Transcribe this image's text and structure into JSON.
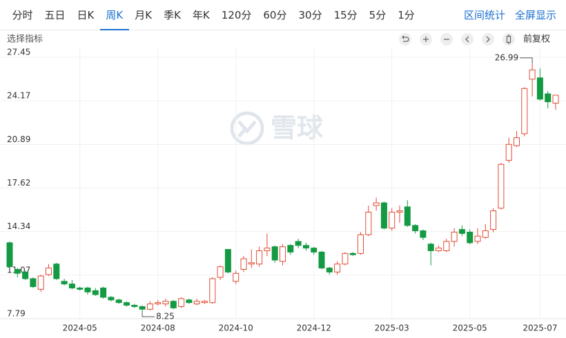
{
  "toolbar": {
    "periods": [
      "分时",
      "五日",
      "日K",
      "周K",
      "月K",
      "季K",
      "年K",
      "120分",
      "60分",
      "30分",
      "15分",
      "5分",
      "1分"
    ],
    "active": 3,
    "actions": [
      "区间统计",
      "全屏显示"
    ]
  },
  "sub_toolbar": {
    "indicator": "选择指标",
    "adjust": "前复权"
  },
  "chart_data": {
    "type": "candlestick",
    "watermark": "雪球",
    "categories": [
      null,
      null,
      null,
      null,
      null,
      null,
      null,
      null,
      null,
      "2024-05",
      null,
      null,
      null,
      null,
      null,
      null,
      null,
      null,
      null,
      "2024-08",
      null,
      null,
      null,
      null,
      null,
      null,
      null,
      null,
      null,
      "2024-10",
      null,
      null,
      null,
      null,
      null,
      null,
      null,
      null,
      null,
      "2024-12",
      null,
      null,
      null,
      null,
      null,
      null,
      null,
      null,
      null,
      "2025-03",
      null,
      null,
      null,
      null,
      null,
      null,
      null,
      null,
      null,
      "2025-05",
      null,
      null,
      null,
      null,
      null,
      null,
      null,
      null,
      "2025-07",
      null,
      null
    ],
    "open": [
      13.5,
      11.5,
      11.3,
      10.8,
      10.0,
      11.1,
      11.9,
      10.6,
      10.4,
      10.1,
      10.1,
      9.9,
      10.1,
      9.4,
      9.2,
      9.0,
      8.8,
      8.7,
      8.5,
      8.9,
      8.9,
      9.1,
      8.7,
      9.2,
      8.9,
      9.0,
      9.0,
      10.9,
      13.0,
      10.6,
      11.5,
      11.9,
      11.9,
      12.9,
      13.2,
      12.1,
      13.3,
      13.6,
      13.3,
      13.1,
      12.8,
      11.6,
      11.3,
      11.9,
      12.7,
      12.7,
      14.1,
      16.3,
      16.5,
      14.6,
      15.8,
      16.2,
      14.8,
      14.4,
      13.4,
      12.9,
      12.9,
      13.6,
      14.5,
      14.3,
      13.6,
      13.9,
      14.5,
      16.1,
      19.7,
      20.8,
      21.7,
      25.8,
      25.9,
      24.7,
      24.0
    ],
    "high": [
      13.6,
      11.6,
      11.4,
      10.9,
      11.1,
      11.9,
      12.0,
      10.8,
      10.7,
      10.2,
      10.2,
      10.1,
      10.2,
      9.5,
      9.3,
      9.1,
      8.9,
      8.8,
      9.1,
      9.2,
      9.3,
      9.2,
      9.4,
      9.3,
      9.3,
      9.2,
      10.9,
      11.8,
      13.0,
      11.4,
      12.5,
      13.0,
      13.2,
      14.2,
      13.3,
      13.4,
      13.4,
      13.8,
      13.5,
      13.2,
      12.9,
      11.7,
      12.1,
      12.8,
      12.8,
      14.3,
      16.3,
      16.9,
      16.6,
      16.1,
      16.3,
      16.7,
      14.9,
      14.5,
      13.5,
      13.3,
      13.8,
      14.6,
      14.8,
      14.5,
      14.6,
      14.9,
      16.1,
      19.5,
      21.4,
      21.9,
      25.2,
      26.99,
      26.6,
      24.9,
      24.6
    ],
    "low": [
      11.6,
      10.9,
      10.7,
      10.1,
      9.8,
      11.0,
      10.7,
      10.3,
      10.0,
      9.9,
      9.6,
      9.5,
      9.3,
      9.1,
      8.9,
      8.7,
      8.6,
      8.25,
      8.4,
      8.8,
      8.7,
      8.5,
      8.6,
      8.9,
      8.8,
      8.9,
      8.9,
      10.7,
      11.2,
      10.4,
      11.3,
      11.6,
      11.7,
      12.5,
      12.0,
      11.8,
      12.6,
      13.1,
      12.9,
      12.6,
      11.5,
      11.1,
      11.1,
      11.8,
      12.5,
      12.6,
      14.0,
      15.9,
      14.5,
      14.4,
      15.0,
      14.7,
      14.2,
      13.7,
      11.8,
      12.8,
      12.8,
      13.2,
      14.0,
      13.4,
      13.4,
      13.8,
      14.3,
      16.0,
      19.5,
      20.7,
      21.5,
      24.5,
      24.2,
      23.6,
      23.5
    ],
    "close": [
      11.7,
      11.2,
      10.8,
      10.2,
      11.0,
      11.6,
      10.8,
      10.4,
      10.1,
      10.0,
      9.8,
      9.6,
      9.4,
      9.2,
      9.0,
      8.8,
      8.7,
      8.5,
      8.9,
      9.0,
      9.1,
      8.6,
      9.3,
      9.0,
      9.1,
      9.1,
      10.8,
      11.7,
      11.3,
      11.2,
      12.3,
      12.0,
      12.9,
      13.1,
      12.2,
      13.2,
      12.8,
      13.3,
      13.1,
      12.8,
      11.6,
      11.3,
      11.9,
      12.7,
      12.6,
      14.1,
      15.8,
      16.5,
      14.6,
      15.8,
      15.9,
      14.8,
      14.4,
      13.9,
      12.9,
      13.1,
      13.6,
      14.3,
      14.2,
      13.5,
      14.0,
      14.4,
      15.9,
      19.4,
      20.9,
      21.4,
      25.1,
      26.5,
      24.3,
      24.1,
      24.6
    ],
    "up_color": "#e24a33",
    "down_color": "#139a43",
    "up_hollow": true,
    "ylim": [
      7.79,
      27.45
    ],
    "yticks": [
      27.45,
      24.17,
      20.89,
      17.62,
      14.34,
      11.07,
      7.79
    ],
    "grid": true
  }
}
